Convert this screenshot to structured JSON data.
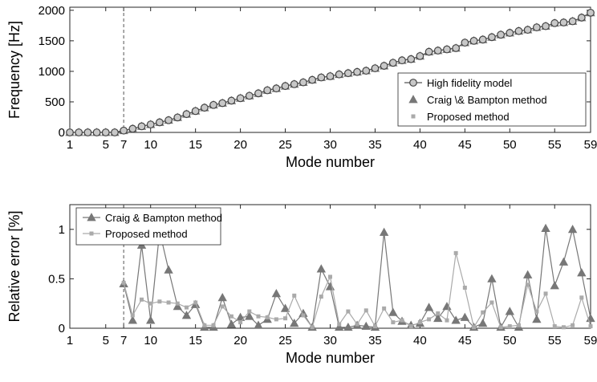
{
  "chart_data": [
    {
      "type": "line",
      "xlabel": "Mode number",
      "ylabel": "Frequency [Hz]",
      "xlim": [
        1,
        59
      ],
      "ylim": [
        0,
        2050
      ],
      "xticks": [
        1,
        5,
        7,
        10,
        15,
        20,
        25,
        30,
        35,
        40,
        45,
        50,
        55,
        59
      ],
      "yticks": [
        0,
        500,
        1000,
        1500,
        2000
      ],
      "vline_x": 7,
      "legend_position": "lower-right",
      "x": [
        1,
        2,
        3,
        4,
        5,
        6,
        7,
        8,
        9,
        10,
        11,
        12,
        13,
        14,
        15,
        16,
        17,
        18,
        19,
        20,
        21,
        22,
        23,
        24,
        25,
        26,
        27,
        28,
        29,
        30,
        31,
        32,
        33,
        34,
        35,
        36,
        37,
        38,
        39,
        40,
        41,
        42,
        43,
        44,
        45,
        46,
        47,
        48,
        49,
        50,
        51,
        52,
        53,
        54,
        55,
        56,
        57,
        58,
        59
      ],
      "series": [
        {
          "name": "High fidelity model",
          "color": "#555555",
          "marker": "open-circle",
          "values": [
            0,
            0,
            0,
            0,
            0,
            0,
            30,
            60,
            100,
            130,
            165,
            200,
            245,
            300,
            350,
            405,
            450,
            480,
            520,
            560,
            600,
            640,
            690,
            720,
            760,
            790,
            820,
            860,
            900,
            920,
            950,
            970,
            990,
            1010,
            1050,
            1090,
            1140,
            1180,
            1200,
            1250,
            1320,
            1340,
            1360,
            1380,
            1470,
            1500,
            1520,
            1560,
            1600,
            1630,
            1660,
            1680,
            1720,
            1740,
            1790,
            1800,
            1820,
            1880,
            1960
          ]
        },
        {
          "name": "Craig \\& Bampton method",
          "color": "#777777",
          "marker": "triangle",
          "values": [
            0,
            0,
            0,
            0,
            0,
            0,
            30,
            60,
            100,
            130,
            165,
            200,
            245,
            300,
            350,
            405,
            450,
            480,
            520,
            560,
            600,
            640,
            690,
            720,
            760,
            790,
            820,
            860,
            900,
            920,
            950,
            970,
            990,
            1010,
            1050,
            1090,
            1140,
            1180,
            1200,
            1250,
            1320,
            1340,
            1360,
            1380,
            1470,
            1500,
            1520,
            1560,
            1600,
            1630,
            1660,
            1680,
            1720,
            1740,
            1790,
            1800,
            1820,
            1880,
            1960
          ]
        },
        {
          "name": "Proposed method",
          "color": "#aaaaaa",
          "marker": "square",
          "values": [
            0,
            0,
            0,
            0,
            0,
            0,
            30,
            60,
            100,
            130,
            165,
            200,
            245,
            300,
            350,
            405,
            450,
            480,
            520,
            560,
            600,
            640,
            690,
            720,
            760,
            790,
            820,
            860,
            900,
            920,
            950,
            970,
            990,
            1010,
            1050,
            1090,
            1140,
            1180,
            1200,
            1250,
            1320,
            1340,
            1360,
            1380,
            1470,
            1500,
            1520,
            1560,
            1600,
            1630,
            1660,
            1680,
            1720,
            1740,
            1790,
            1800,
            1820,
            1880,
            1960
          ]
        }
      ]
    },
    {
      "type": "line",
      "xlabel": "Mode number",
      "ylabel": "Relative error [%]",
      "xlim": [
        1,
        59
      ],
      "ylim": [
        0,
        1.25
      ],
      "xticks": [
        1,
        5,
        7,
        10,
        15,
        20,
        25,
        30,
        35,
        40,
        45,
        50,
        55,
        59
      ],
      "yticks": [
        0,
        0.5,
        1
      ],
      "vline_x": 7,
      "legend_position": "top-left",
      "x": [
        7,
        8,
        9,
        10,
        11,
        12,
        13,
        14,
        15,
        16,
        17,
        18,
        19,
        20,
        21,
        22,
        23,
        24,
        25,
        26,
        27,
        28,
        29,
        30,
        31,
        32,
        33,
        34,
        35,
        36,
        37,
        38,
        39,
        40,
        41,
        42,
        43,
        44,
        45,
        46,
        47,
        48,
        49,
        50,
        51,
        52,
        53,
        54,
        55,
        56,
        57,
        58,
        59
      ],
      "series": [
        {
          "name": "Craig & Bampton method",
          "color": "#777777",
          "marker": "triangle",
          "values": [
            0.45,
            0.08,
            0.84,
            0.08,
            0.98,
            0.59,
            0.22,
            0.13,
            0.24,
            0.01,
            0.01,
            0.31,
            0.04,
            0.11,
            0.12,
            0.03,
            0.09,
            0.35,
            0.2,
            0.05,
            0.15,
            0.01,
            0.6,
            0.42,
            0.01,
            0.01,
            0.03,
            0.02,
            0.01,
            0.97,
            0.16,
            0.07,
            0.03,
            0.05,
            0.21,
            0.1,
            0.22,
            0.08,
            0.11,
            0.01,
            0.05,
            0.5,
            0.01,
            0.17,
            0.01,
            0.54,
            0.09,
            1.01,
            0.43,
            0.67,
            1.0,
            0.56,
            0.1
          ]
        },
        {
          "name": "Proposed method",
          "color": "#aaaaaa",
          "marker": "square",
          "values": [
            0.46,
            0.13,
            0.29,
            0.25,
            0.27,
            0.26,
            0.25,
            0.21,
            0.26,
            0.03,
            0.03,
            0.22,
            0.12,
            0.06,
            0.17,
            0.12,
            0.11,
            0.09,
            0.1,
            0.33,
            0.13,
            0.01,
            0.32,
            0.52,
            0.04,
            0.17,
            0.04,
            0.18,
            0.02,
            0.2,
            0.06,
            0.08,
            0.02,
            0.06,
            0.09,
            0.15,
            0.08,
            0.76,
            0.41,
            0.01,
            0.16,
            0.26,
            0.01,
            0.02,
            0.03,
            0.44,
            0.17,
            0.35,
            0.02,
            0.01,
            0.03,
            0.31,
            0.02
          ]
        }
      ]
    }
  ]
}
